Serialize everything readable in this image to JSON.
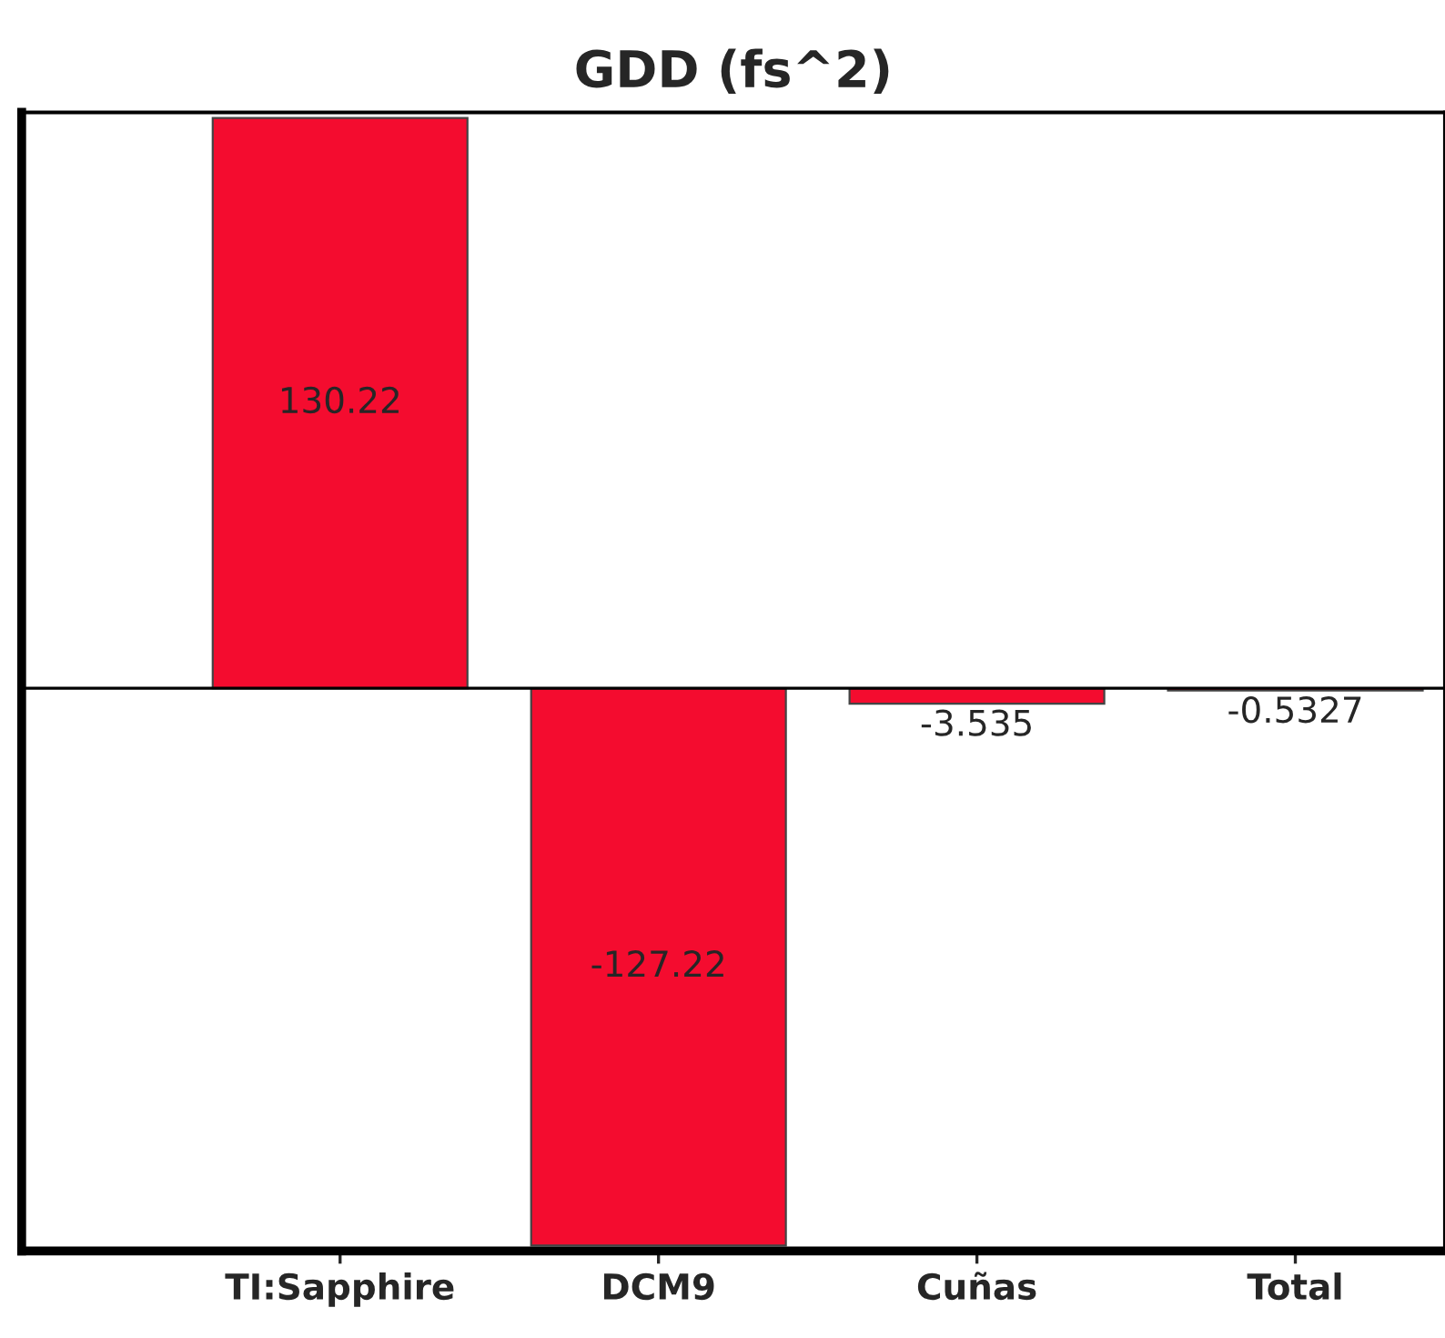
{
  "chart_data": {
    "type": "bar",
    "title": "GDD (fs^2)",
    "categories": [
      "TI:Sapphire",
      "DCM9",
      "Cuñas",
      "Total"
    ],
    "values": [
      130.22,
      -127.22,
      -3.535,
      -0.5327
    ],
    "color": "#f40c2f",
    "ylim": [
      -128.5,
      131.5
    ],
    "data_labels": true,
    "tick_labels": "x",
    "grid": false,
    "legend": false
  }
}
